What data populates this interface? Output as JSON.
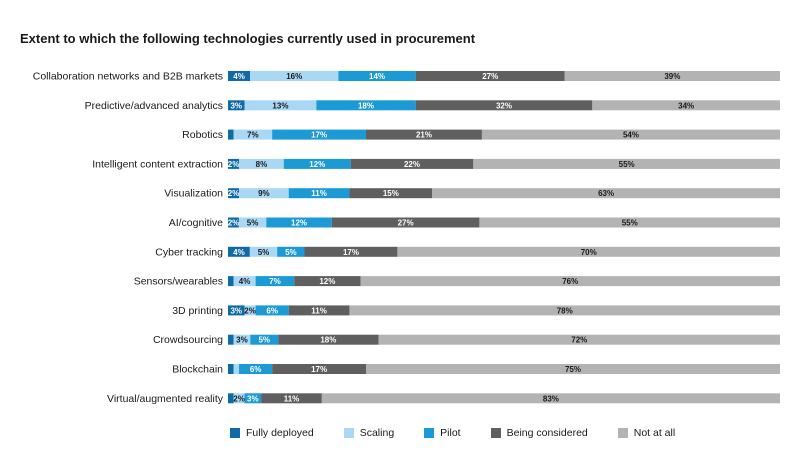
{
  "chart_data": {
    "type": "bar",
    "orientation": "horizontal",
    "stacked": true,
    "title": "Extent to which the following technologies currently used in procurement",
    "categories": [
      "Collaboration networks and B2B markets",
      "Predictive/advanced analytics",
      "Robotics",
      "Intelligent content extraction",
      "Visualization",
      "AI/cognitive",
      "Cyber tracking",
      "Sensors/wearables",
      "3D printing",
      "Crowdsourcing",
      "Blockchain",
      "Virtual/augmented reality"
    ],
    "series": [
      {
        "name": "Fully deployed",
        "color": "#0e6ba8",
        "text_color": "#ffffff",
        "values": [
          4,
          3,
          1,
          2,
          2,
          2,
          4,
          1,
          3,
          1,
          1,
          1
        ],
        "labels": [
          "4%",
          "3%",
          "",
          "2%",
          "2%",
          "2%",
          "4%",
          "",
          "3%",
          "",
          "",
          ""
        ]
      },
      {
        "name": "Scaling",
        "color": "#a9d8f5",
        "text_color": "#1a1a1a",
        "values": [
          16,
          13,
          7,
          8,
          9,
          5,
          5,
          4,
          2,
          3,
          1,
          2
        ],
        "labels": [
          "16%",
          "13%",
          "7%",
          "8%",
          "9%",
          "5%",
          "5%",
          "4%",
          "2%",
          "3%",
          "",
          "2%"
        ]
      },
      {
        "name": "Pilot",
        "color": "#1b9ad6",
        "text_color": "#ffffff",
        "values": [
          14,
          18,
          17,
          12,
          11,
          12,
          5,
          7,
          6,
          5,
          6,
          3
        ],
        "labels": [
          "14%",
          "18%",
          "17%",
          "12%",
          "11%",
          "12%",
          "5%",
          "7%",
          "6%",
          "5%",
          "6%",
          "3%"
        ]
      },
      {
        "name": "Being considered",
        "color": "#5f5f5f",
        "text_color": "#ffffff",
        "values": [
          27,
          32,
          21,
          22,
          15,
          27,
          17,
          12,
          11,
          18,
          17,
          11
        ],
        "labels": [
          "27%",
          "32%",
          "21%",
          "22%",
          "15%",
          "27%",
          "17%",
          "12%",
          "11%",
          "18%",
          "17%",
          "11%"
        ]
      },
      {
        "name": "Not at all",
        "color": "#b3b3b3",
        "text_color": "#1a1a1a",
        "values": [
          39,
          34,
          54,
          55,
          63,
          55,
          70,
          76,
          78,
          72,
          75,
          83
        ],
        "labels": [
          "39%",
          "34%",
          "54%",
          "55%",
          "63%",
          "55%",
          "70%",
          "76%",
          "78%",
          "72%",
          "75%",
          "83%"
        ]
      }
    ],
    "xlim": [
      0,
      100
    ],
    "grid": false,
    "legend": "bottom"
  }
}
